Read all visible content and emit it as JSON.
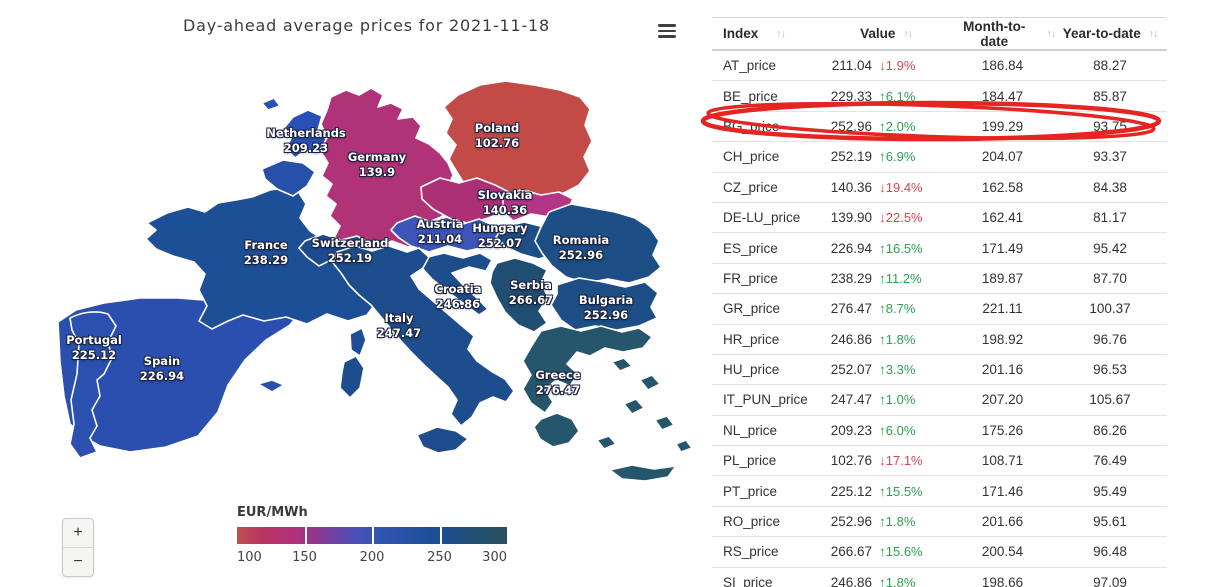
{
  "header": {
    "title": "Day-ahead average prices for 2021-11-18"
  },
  "icons": {
    "menu": "hamburger-icon",
    "sort": "↑↓",
    "up_arrow": "↑",
    "down_arrow": "↓"
  },
  "map": {
    "unit": "EUR/MWh",
    "countries": [
      {
        "name": "Netherlands",
        "value": "209.23",
        "color": "#2b50b5"
      },
      {
        "name": "Germany",
        "value": "139.9",
        "color": "#b03378"
      },
      {
        "name": "Poland",
        "value": "102.76",
        "color": "#c24b47"
      },
      {
        "name": "Slovakia",
        "value": "140.36",
        "color": "#b43585"
      },
      {
        "name": "Austria",
        "value": "211.04",
        "color": "#3d55b8"
      },
      {
        "name": "Hungary",
        "value": "252.07",
        "color": "#1d4e86"
      },
      {
        "name": "France",
        "value": "238.29",
        "color": "#1d4f97"
      },
      {
        "name": "Switzerland",
        "value": "252.19",
        "color": "#1c4a8c"
      },
      {
        "name": "Romania",
        "value": "252.96",
        "color": "#1d4e86"
      },
      {
        "name": "Croatia",
        "value": "246.86",
        "color": "#1e4d8c"
      },
      {
        "name": "Serbia",
        "value": "266.67",
        "color": "#204e72"
      },
      {
        "name": "Bulgaria",
        "value": "252.96",
        "color": "#1d4e86"
      },
      {
        "name": "Italy",
        "value": "247.47",
        "color": "#1d4d8d"
      },
      {
        "name": "Greece",
        "value": "276.47",
        "color": "#26566c"
      },
      {
        "name": "Portugal",
        "value": "225.12",
        "color": "#2b50b0"
      },
      {
        "name": "Spain",
        "value": "226.94",
        "color": "#2a4fae"
      }
    ],
    "unlabeled_regions": [
      {
        "name": "Czechia",
        "color": "#ad3076"
      },
      {
        "name": "Belgium",
        "color": "#2750ab"
      }
    ]
  },
  "legend": {
    "title": "EUR/MWh",
    "ticks": [
      "100",
      "150",
      "200",
      "250",
      "300"
    ]
  },
  "map_controls": {
    "zoom_in": "+",
    "zoom_out": "−"
  },
  "table": {
    "columns": [
      "Index",
      "Value",
      "Month-to-date",
      "Year-to-date"
    ],
    "highlighted_index": "BG_price",
    "rows": [
      {
        "index": "AT_price",
        "value": "211.04",
        "change": "1.9%",
        "direction": "down",
        "mtd": "186.84",
        "ytd": "88.27"
      },
      {
        "index": "BE_price",
        "value": "229.33",
        "change": "6.1%",
        "direction": "up",
        "mtd": "184.47",
        "ytd": "85.87"
      },
      {
        "index": "BG_price",
        "value": "252.96",
        "change": "2.0%",
        "direction": "up",
        "mtd": "199.29",
        "ytd": "93.75"
      },
      {
        "index": "CH_price",
        "value": "252.19",
        "change": "6.9%",
        "direction": "up",
        "mtd": "204.07",
        "ytd": "93.37"
      },
      {
        "index": "CZ_price",
        "value": "140.36",
        "change": "19.4%",
        "direction": "down",
        "mtd": "162.58",
        "ytd": "84.38"
      },
      {
        "index": "DE-LU_price",
        "value": "139.90",
        "change": "22.5%",
        "direction": "down",
        "mtd": "162.41",
        "ytd": "81.17"
      },
      {
        "index": "ES_price",
        "value": "226.94",
        "change": "16.5%",
        "direction": "up",
        "mtd": "171.49",
        "ytd": "95.42"
      },
      {
        "index": "FR_price",
        "value": "238.29",
        "change": "11.2%",
        "direction": "up",
        "mtd": "189.87",
        "ytd": "87.70"
      },
      {
        "index": "GR_price",
        "value": "276.47",
        "change": "8.7%",
        "direction": "up",
        "mtd": "221.11",
        "ytd": "100.37"
      },
      {
        "index": "HR_price",
        "value": "246.86",
        "change": "1.8%",
        "direction": "up",
        "mtd": "198.92",
        "ytd": "96.76"
      },
      {
        "index": "HU_price",
        "value": "252.07",
        "change": "3.3%",
        "direction": "up",
        "mtd": "201.16",
        "ytd": "96.53"
      },
      {
        "index": "IT_PUN_price",
        "value": "247.47",
        "change": "1.0%",
        "direction": "up",
        "mtd": "207.20",
        "ytd": "105.67"
      },
      {
        "index": "NL_price",
        "value": "209.23",
        "change": "6.0%",
        "direction": "up",
        "mtd": "175.26",
        "ytd": "86.26"
      },
      {
        "index": "PL_price",
        "value": "102.76",
        "change": "17.1%",
        "direction": "down",
        "mtd": "108.71",
        "ytd": "76.49"
      },
      {
        "index": "PT_price",
        "value": "225.12",
        "change": "15.5%",
        "direction": "up",
        "mtd": "171.46",
        "ytd": "95.49"
      },
      {
        "index": "RO_price",
        "value": "252.96",
        "change": "1.8%",
        "direction": "up",
        "mtd": "201.66",
        "ytd": "95.61"
      },
      {
        "index": "RS_price",
        "value": "266.67",
        "change": "15.6%",
        "direction": "up",
        "mtd": "200.54",
        "ytd": "96.48"
      },
      {
        "index": "SI_price",
        "value": "246.86",
        "change": "1.8%",
        "direction": "up",
        "mtd": "198.66",
        "ytd": "97.09"
      }
    ]
  },
  "colors": {
    "up": "#2da052",
    "down": "#d64550",
    "annotation": "#e42522"
  }
}
